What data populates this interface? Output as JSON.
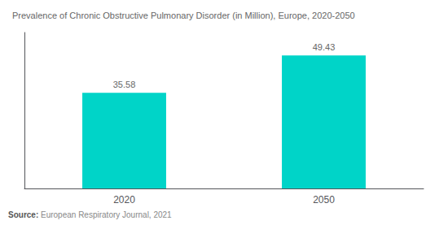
{
  "chart_data": {
    "type": "bar",
    "title": "Prevalence of Chronic Obstructive Pulmonary Disorder (in Million), Europe, 2020-2050",
    "categories": [
      "2020",
      "2050"
    ],
    "values": [
      35.58,
      49.43
    ],
    "color": "#00D4C8",
    "ylim": [
      0,
      58
    ],
    "data_labels": true,
    "tick_labels": "x",
    "grid": false,
    "annotations": [
      "Source:",
      "European Respiratory Journal, 2021"
    ]
  }
}
